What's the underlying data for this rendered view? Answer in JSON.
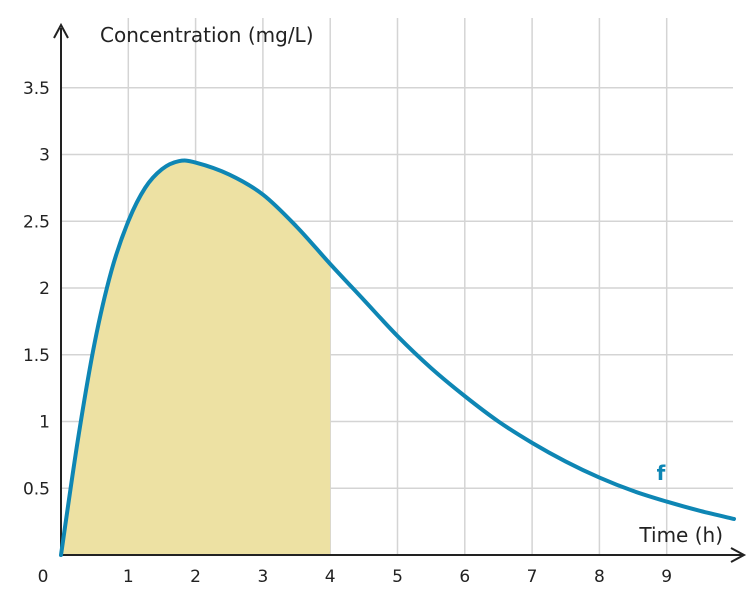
{
  "chart_data": {
    "type": "area",
    "xlabel": "Time (h)",
    "ylabel": "Concentration (mg/L)",
    "origin_label": "0",
    "xlim": [
      0,
      10
    ],
    "ylim": [
      0,
      4
    ],
    "grid": true,
    "x_ticks": [
      {
        "value": 1,
        "label": "1"
      },
      {
        "value": 2,
        "label": "2"
      },
      {
        "value": 3,
        "label": "3"
      },
      {
        "value": 4,
        "label": "4"
      },
      {
        "value": 5,
        "label": "5"
      },
      {
        "value": 6,
        "label": "6"
      },
      {
        "value": 7,
        "label": "7"
      },
      {
        "value": 8,
        "label": "8"
      },
      {
        "value": 9,
        "label": "9"
      }
    ],
    "y_ticks": [
      {
        "value": 0.5,
        "label": "0.5"
      },
      {
        "value": 1,
        "label": "1"
      },
      {
        "value": 1.5,
        "label": "1.5"
      },
      {
        "value": 2,
        "label": "2"
      },
      {
        "value": 2.5,
        "label": "2.5"
      },
      {
        "value": 3,
        "label": "3"
      },
      {
        "value": 3.5,
        "label": "3.5"
      }
    ],
    "series": [
      {
        "name": "f",
        "color": "#0e86b4",
        "x": [
          0,
          0.25,
          0.5,
          0.75,
          1,
          1.25,
          1.5,
          1.75,
          2,
          2.5,
          3,
          3.5,
          4,
          4.5,
          5,
          5.5,
          6,
          6.5,
          7,
          7.5,
          8,
          8.5,
          9,
          9.5,
          10
        ],
        "y": [
          0,
          0.86,
          1.59,
          2.13,
          2.5,
          2.75,
          2.89,
          2.95,
          2.94,
          2.85,
          2.7,
          2.46,
          2.18,
          1.91,
          1.64,
          1.4,
          1.19,
          1.0,
          0.84,
          0.7,
          0.58,
          0.48,
          0.4,
          0.33,
          0.27
        ]
      }
    ],
    "shaded_region": {
      "x_from": 0,
      "x_to": 4,
      "color": "#ede1a3"
    }
  }
}
